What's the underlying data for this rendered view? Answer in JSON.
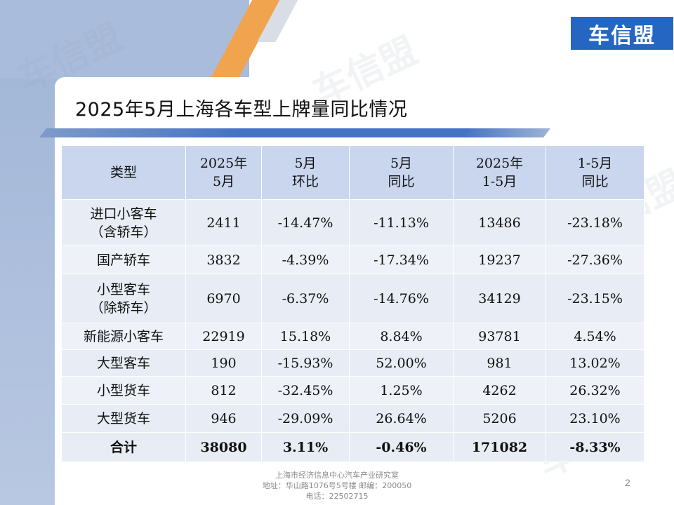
{
  "brand": {
    "logo_text": "车信盟",
    "logo_bg": "#2466c2",
    "accent_orange": "#f0a44d",
    "bar_blue": "#4472c4"
  },
  "title": "2025年5月上海各车型上牌量同比情况",
  "table": {
    "headers": [
      [
        "类型"
      ],
      [
        "2025年",
        "5月"
      ],
      [
        "5月",
        "环比"
      ],
      [
        "5月",
        "同比"
      ],
      [
        "2025年",
        "1-5月"
      ],
      [
        "1-5月",
        "同比"
      ]
    ],
    "rows": [
      {
        "type": [
          "进口小客车",
          "（含轿车）"
        ],
        "may": "2411",
        "mom": "-14.47%",
        "yoy": "-11.13%",
        "ytd": "13486",
        "ytd_yoy": "-23.18%"
      },
      {
        "type": [
          "国产轿车"
        ],
        "may": "3832",
        "mom": "-4.39%",
        "yoy": "-17.34%",
        "ytd": "19237",
        "ytd_yoy": "-27.36%"
      },
      {
        "type": [
          "小型客车",
          "（除轿车）"
        ],
        "may": "6970",
        "mom": "-6.37%",
        "yoy": "-14.76%",
        "ytd": "34129",
        "ytd_yoy": "-23.15%"
      },
      {
        "type": [
          "新能源小客车"
        ],
        "may": "22919",
        "mom": "15.18%",
        "yoy": "8.84%",
        "ytd": "93781",
        "ytd_yoy": "4.54%"
      },
      {
        "type": [
          "大型客车"
        ],
        "may": "190",
        "mom": "-15.93%",
        "yoy": "52.00%",
        "ytd": "981",
        "ytd_yoy": "13.02%"
      },
      {
        "type": [
          "小型货车"
        ],
        "may": "812",
        "mom": "-32.45%",
        "yoy": "1.25%",
        "ytd": "4262",
        "ytd_yoy": "26.32%"
      },
      {
        "type": [
          "大型货车"
        ],
        "may": "946",
        "mom": "-29.09%",
        "yoy": "26.64%",
        "ytd": "5206",
        "ytd_yoy": "23.10%"
      }
    ],
    "total": {
      "type": "合计",
      "may": "38080",
      "mom": "3.11%",
      "yoy": "-0.46%",
      "ytd": "171082",
      "ytd_yoy": "-8.33%"
    }
  },
  "footer": {
    "line1": "上海市经济信息中心汽车产业研究室",
    "line2": "地址：华山路1076号5号楼    邮编：200050",
    "line3": "电话：22502715"
  },
  "page_number": "2"
}
